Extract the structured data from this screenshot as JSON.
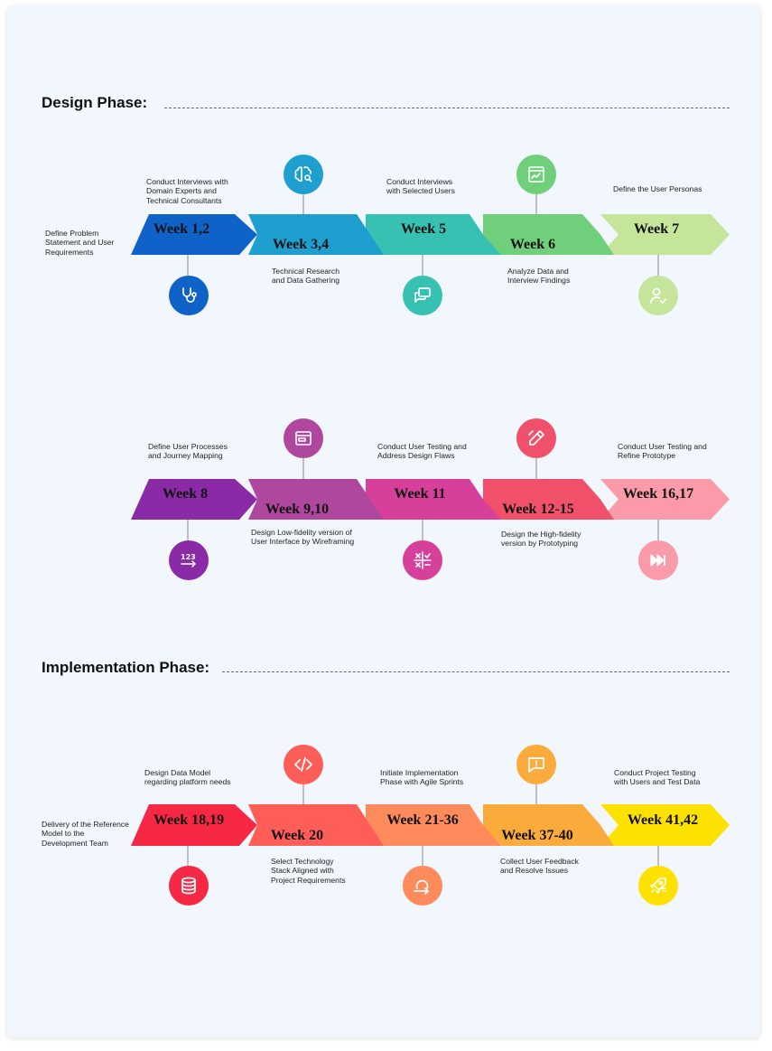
{
  "design_phase": {
    "title": "Design Phase:",
    "rows": [
      {
        "steps": [
          {
            "label": "Week 1,2",
            "note": "Define Problem Statement and User Requirements",
            "icon": "stethoscope-icon",
            "color": "#0f63c8"
          },
          {
            "label": "Week 3,4",
            "note": "Conduct Interviews with Domain Experts and Technical Consultants",
            "note2": "Technical Research and Data Gathering",
            "icon": "brain-search-icon",
            "color": "#1f9fd0"
          },
          {
            "label": "Week 5",
            "note": "Conduct Interviews with Selected Users",
            "icon": "chat-icon",
            "color": "#37c1b2"
          },
          {
            "label": "Week 6",
            "note": "Analyze Data and Interview Findings",
            "icon": "analytics-window-icon",
            "color": "#6fcf7a"
          },
          {
            "label": "Week 7",
            "note": "Define the User Personas",
            "icon": "user-check-icon",
            "color": "#c4e59a"
          }
        ]
      },
      {
        "steps": [
          {
            "label": "Week 8",
            "note": "Define User Processes and Journey Mapping",
            "icon": "number-123-icon",
            "color": "#8a2aa6"
          },
          {
            "label": "Week 9,10",
            "note": "Design Low-fidelity version of User Interface by Wireframing",
            "icon": "wireframe-window-icon",
            "color": "#b0479e"
          },
          {
            "label": "Week 11",
            "note": "Conduct User Testing and Address Design Flaws",
            "icon": "test-grid-icon",
            "color": "#d6409a"
          },
          {
            "label": "Week 12-15",
            "note": "Design the High-fidelity version by Prototyping",
            "icon": "pen-edit-icon",
            "color": "#f0506a"
          },
          {
            "label": "Week 16,17",
            "note": "Conduct User Testing and Refine Prototype",
            "icon": "fast-forward-icon",
            "color": "#fb9aa8"
          }
        ]
      }
    ]
  },
  "implementation_phase": {
    "title": "Implementation Phase:",
    "rows": [
      {
        "steps": [
          {
            "label": "Week 18,19",
            "note": "Delivery of the Reference Model to the Development Team",
            "icon": "database-icon",
            "color": "#f62843"
          },
          {
            "label": "Week 20",
            "note": "Design Data Model regarding platform needs",
            "note2": "Select Technology Stack Aligned with Project Requirements",
            "icon": "code-icon",
            "color": "#ff5e58"
          },
          {
            "label": "Week 21-36",
            "note": "Initiate Implementation Phase with Agile Sprints",
            "icon": "sprint-cycle-icon",
            "color": "#ff8a5c"
          },
          {
            "label": "Week 37-40",
            "note": "Collect User Feedback and Resolve Issues",
            "icon": "feedback-alert-icon",
            "color": "#fbaa3c"
          },
          {
            "label": "Week 41,42",
            "note": "Conduct Project Testing with Users and Test Data",
            "icon": "rocket-icon",
            "color": "#fde100"
          }
        ]
      }
    ]
  }
}
